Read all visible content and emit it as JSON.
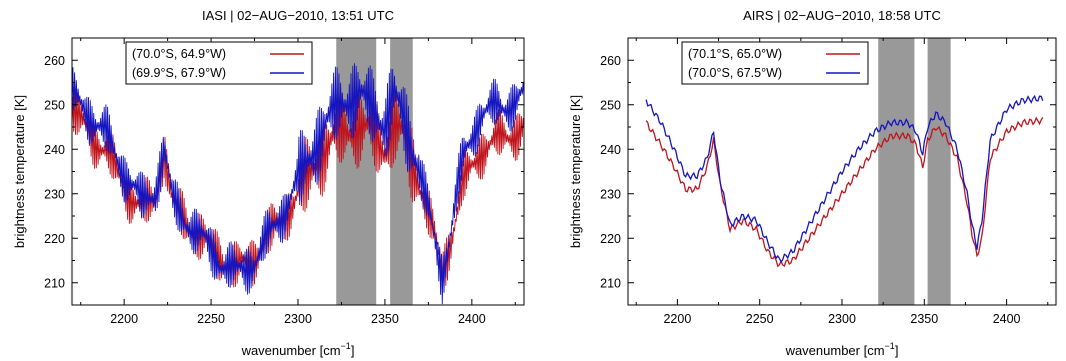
{
  "figure_caption": "",
  "colors": {
    "red": "#c0141c",
    "blue": "#1414c0",
    "band": "#999999"
  },
  "chart_data": [
    {
      "type": "line",
      "title": "IASI | 02−AUG−2010, 13:51 UTC",
      "xlabel": "wavenumber [cm",
      "xlabel_sup": "−1",
      "xlabel_end": "]",
      "ylabel": "brightness temperature [K]",
      "xlim": [
        2170,
        2430
      ],
      "ylim": [
        205,
        265
      ],
      "xticks": [
        2200,
        2250,
        2300,
        2350,
        2400
      ],
      "yticks": [
        210,
        220,
        230,
        240,
        250,
        260
      ],
      "grid": false,
      "legend_position": "top-left",
      "shaded_bands": [
        [
          2322,
          2345
        ],
        [
          2353,
          2366
        ]
      ],
      "noisy": true,
      "series": [
        {
          "name": "(70.0°S, 64.9°W)",
          "color": "#c0141c",
          "x": [
            2170,
            2180,
            2190,
            2200,
            2210,
            2218,
            2223,
            2228,
            2240,
            2255,
            2265,
            2275,
            2290,
            2305,
            2315,
            2325,
            2335,
            2345,
            2350,
            2355,
            2360,
            2368,
            2375,
            2380,
            2383,
            2388,
            2395,
            2405,
            2420,
            2430
          ],
          "y": [
            248,
            244,
            239,
            232,
            226,
            229,
            240,
            227,
            222,
            216,
            213,
            216,
            224,
            233,
            240,
            244,
            245,
            243,
            240,
            245,
            243,
            235,
            225,
            218,
            213,
            220,
            232,
            240,
            243,
            245
          ]
        },
        {
          "name": "(69.9°S, 67.9°W)",
          "color": "#1414c0",
          "x": [
            2170,
            2180,
            2190,
            2200,
            2210,
            2218,
            2223,
            2228,
            2240,
            2255,
            2265,
            2275,
            2290,
            2305,
            2315,
            2325,
            2335,
            2345,
            2350,
            2355,
            2360,
            2368,
            2375,
            2380,
            2383,
            2388,
            2395,
            2405,
            2420,
            2430
          ],
          "y": [
            252,
            248,
            243,
            235,
            228,
            231,
            240,
            228,
            222,
            215,
            212,
            215,
            225,
            237,
            245,
            251,
            252,
            249,
            245,
            252,
            248,
            238,
            226,
            217,
            212,
            222,
            238,
            248,
            250,
            252
          ]
        }
      ]
    },
    {
      "type": "line",
      "title": "AIRS | 02−AUG−2010, 18:58 UTC",
      "xlabel": "wavenumber [cm",
      "xlabel_sup": "−1",
      "xlabel_end": "]",
      "ylabel": "brightness temperature [K]",
      "xlim": [
        2170,
        2430
      ],
      "ylim": [
        205,
        265
      ],
      "xticks": [
        2200,
        2250,
        2300,
        2350,
        2400
      ],
      "yticks": [
        210,
        220,
        230,
        240,
        250,
        260
      ],
      "grid": false,
      "legend_position": "top-left",
      "shaded_bands": [
        [
          2322,
          2344
        ],
        [
          2352,
          2366
        ]
      ],
      "noisy": false,
      "series": [
        {
          "name": "(70.1°S, 65.0°W)",
          "color": "#c0141c",
          "x": [
            2181,
            2190,
            2198,
            2205,
            2212,
            2218,
            2222,
            2226,
            2232,
            2240,
            2248,
            2255,
            2262,
            2270,
            2280,
            2290,
            2300,
            2310,
            2320,
            2330,
            2340,
            2345,
            2349,
            2352,
            2357,
            2363,
            2370,
            2376,
            2379,
            2382,
            2385,
            2390,
            2400,
            2410,
            2422
          ],
          "y": [
            246,
            241,
            236,
            231,
            231,
            236,
            242,
            232,
            222,
            224,
            222,
            217,
            214,
            215,
            220,
            225,
            230,
            235,
            240,
            243,
            243,
            241,
            236,
            242,
            245,
            243,
            238,
            228,
            221,
            216,
            220,
            238,
            244,
            246,
            246.5
          ]
        },
        {
          "name": "(70.0°S, 67.5°W)",
          "color": "#1414c0",
          "x": [
            2181,
            2190,
            2198,
            2205,
            2212,
            2218,
            2222,
            2226,
            2232,
            2240,
            2248,
            2255,
            2262,
            2270,
            2280,
            2290,
            2300,
            2310,
            2320,
            2330,
            2340,
            2345,
            2349,
            2352,
            2357,
            2363,
            2370,
            2376,
            2379,
            2382,
            2385,
            2390,
            2400,
            2410,
            2422
          ],
          "y": [
            251,
            246,
            240,
            234,
            234,
            238,
            244,
            233,
            223,
            225,
            224,
            219,
            215,
            217,
            223,
            229,
            235,
            240,
            244,
            246,
            246,
            244,
            239,
            245,
            248,
            246,
            240,
            230,
            223,
            218,
            224,
            242,
            249,
            251,
            251.5
          ]
        }
      ]
    }
  ]
}
